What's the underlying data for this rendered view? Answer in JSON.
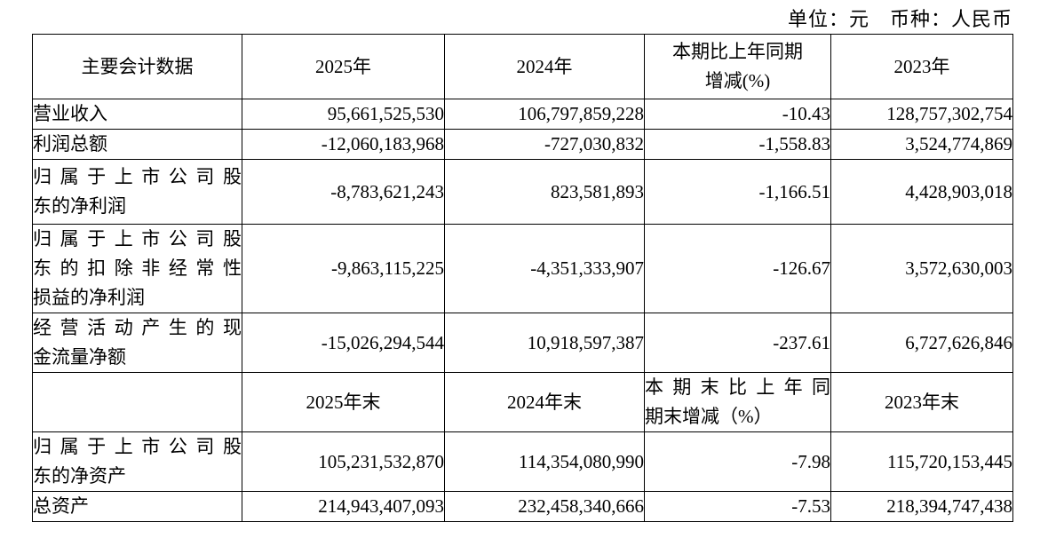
{
  "caption": "单位：元　币种：人民币",
  "table": {
    "header_annual": {
      "metric": "主要会计数据",
      "y2025": "2025年",
      "y2024": "2024年",
      "change": "本期比上年同期\n增减(%)",
      "y2023": "2023年"
    },
    "annual_rows": [
      {
        "label": "营业收入",
        "y2025": "95,661,525,530",
        "y2024": "106,797,859,228",
        "change": "-10.43",
        "y2023": "128,757,302,754"
      },
      {
        "label": "利润总额",
        "y2025": "-12,060,183,968",
        "y2024": "-727,030,832",
        "change": "-1,558.83",
        "y2023": "3,524,774,869"
      },
      {
        "label": "归属于上市公司股\n东的净利润",
        "y2025": "-8,783,621,243",
        "y2024": "823,581,893",
        "change": "-1,166.51",
        "y2023": "4,428,903,018"
      },
      {
        "label": "归属于上市公司股\n东的扣除非经常性\n损益的净利润",
        "y2025": "-9,863,115,225",
        "y2024": "-4,351,333,907",
        "change": "-126.67",
        "y2023": "3,572,630,003"
      },
      {
        "label": "经营活动产生的现\n金流量净额",
        "y2025": "-15,026,294,544",
        "y2024": "10,918,597,387",
        "change": "-237.61",
        "y2023": "6,727,626,846"
      }
    ],
    "header_eop": {
      "metric": "",
      "y2025": "2025年末",
      "y2024": "2024年末",
      "change": "本期末比上年同\n期末增减（%）",
      "y2023": "2023年末"
    },
    "eop_rows": [
      {
        "label": "归属于上市公司股\n东的净资产",
        "y2025": "105,231,532,870",
        "y2024": "114,354,080,990",
        "change": "-7.98",
        "y2023": "115,720,153,445"
      },
      {
        "label": "总资产",
        "y2025": "214,943,407,093",
        "y2024": "232,458,340,666",
        "change": "-7.53",
        "y2023": "218,394,747,438"
      }
    ]
  }
}
